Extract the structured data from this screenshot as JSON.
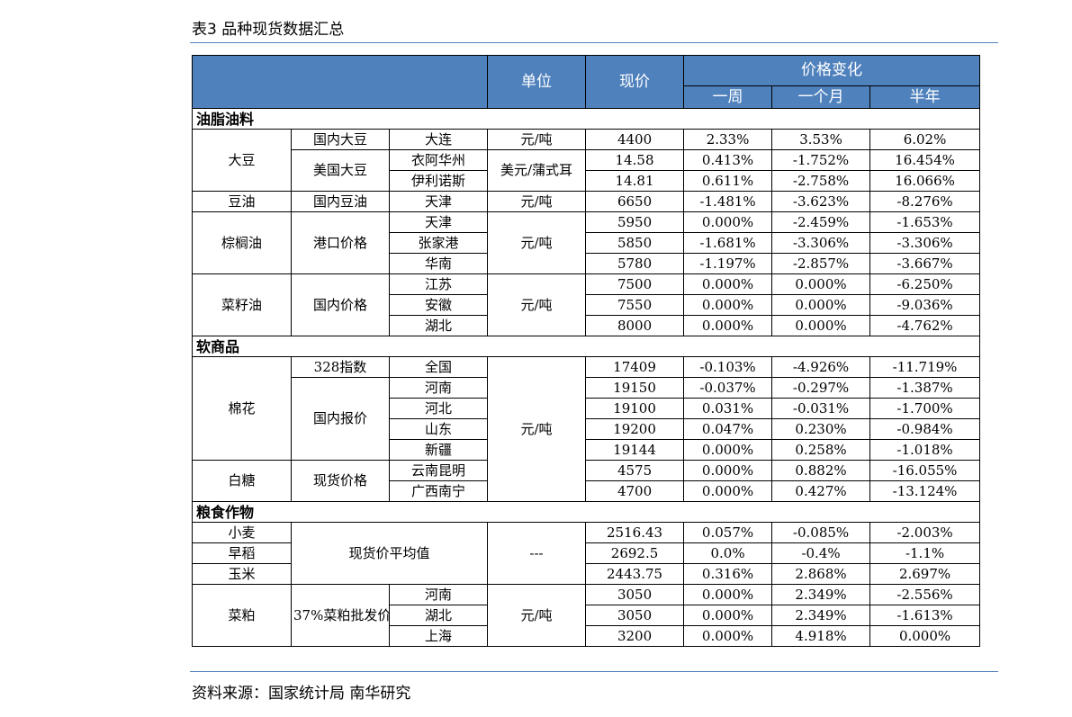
{
  "caption": "表3 品种现货数据汇总",
  "source": "资料来源：国家统计局 南华研究",
  "header": {
    "unit": "单位",
    "price": "现价",
    "change": "价格变化",
    "week": "一周",
    "month": "一个月",
    "half_year": "半年"
  },
  "sections": [
    {
      "title": "油脂油料",
      "groups": [
        {
          "product": "大豆",
          "subs": [
            {
              "name": "国内大豆",
              "unit": "元/吨",
              "rows": [
                {
                  "loc": "大连",
                  "price": "4400",
                  "week": "2.33%",
                  "month": "3.53%",
                  "half": "6.02%"
                }
              ]
            },
            {
              "name": "美国大豆",
              "unit": "美元/蒲式耳",
              "rows": [
                {
                  "loc": "衣阿华州",
                  "price": "14.58",
                  "week": "0.413%",
                  "month": "-1.752%",
                  "half": "16.454%"
                },
                {
                  "loc": "伊利诺斯",
                  "price": "14.81",
                  "week": "0.611%",
                  "month": "-2.758%",
                  "half": "16.066%"
                }
              ]
            }
          ]
        },
        {
          "product": "豆油",
          "subs": [
            {
              "name": "国内豆油",
              "unit": "元/吨",
              "rows": [
                {
                  "loc": "天津",
                  "price": "6650",
                  "week": "-1.481%",
                  "month": "-3.623%",
                  "half": "-8.276%"
                }
              ]
            }
          ]
        },
        {
          "product": "棕榈油",
          "subs": [
            {
              "name": "港口价格",
              "unit": "元/吨",
              "rows": [
                {
                  "loc": "天津",
                  "price": "5950",
                  "week": "0.000%",
                  "month": "-2.459%",
                  "half": "-1.653%"
                },
                {
                  "loc": "张家港",
                  "price": "5850",
                  "week": "-1.681%",
                  "month": "-3.306%",
                  "half": "-3.306%"
                },
                {
                  "loc": "华南",
                  "price": "5780",
                  "week": "-1.197%",
                  "month": "-2.857%",
                  "half": "-3.667%"
                }
              ]
            }
          ]
        },
        {
          "product": "菜籽油",
          "subs": [
            {
              "name": "国内价格",
              "unit": "元/吨",
              "rows": [
                {
                  "loc": "江苏",
                  "price": "7500",
                  "week": "0.000%",
                  "month": "0.000%",
                  "half": "-6.250%"
                },
                {
                  "loc": "安徽",
                  "price": "7550",
                  "week": "0.000%",
                  "month": "0.000%",
                  "half": "-9.036%"
                },
                {
                  "loc": "湖北",
                  "price": "8000",
                  "week": "0.000%",
                  "month": "0.000%",
                  "half": "-4.762%"
                }
              ]
            }
          ]
        }
      ]
    },
    {
      "title": "软商品",
      "unit_all": "元/吨",
      "groups": [
        {
          "product": "棉花",
          "subs": [
            {
              "name": "328指数",
              "rows": [
                {
                  "loc": "全国",
                  "price": "17409",
                  "week": "-0.103%",
                  "month": "-4.926%",
                  "half": "-11.719%"
                }
              ]
            },
            {
              "name": "国内报价",
              "rows": [
                {
                  "loc": "河南",
                  "price": "19150",
                  "week": "-0.037%",
                  "month": "-0.297%",
                  "half": "-1.387%"
                },
                {
                  "loc": "河北",
                  "price": "19100",
                  "week": "0.031%",
                  "month": "-0.031%",
                  "half": "-1.700%"
                },
                {
                  "loc": "山东",
                  "price": "19200",
                  "week": "0.047%",
                  "month": "0.230%",
                  "half": "-0.984%"
                },
                {
                  "loc": "新疆",
                  "price": "19144",
                  "week": "0.000%",
                  "month": "0.258%",
                  "half": "-1.018%"
                }
              ]
            }
          ]
        },
        {
          "product": "白糖",
          "subs": [
            {
              "name": "现货价格",
              "rows": [
                {
                  "loc": "云南昆明",
                  "price": "4575",
                  "week": "0.000%",
                  "month": "0.882%",
                  "half": "-16.055%"
                },
                {
                  "loc": "广西南宁",
                  "price": "4700",
                  "week": "0.000%",
                  "month": "0.427%",
                  "half": "-13.124%"
                }
              ]
            }
          ]
        }
      ]
    },
    {
      "title": "粮食作物",
      "grain": {
        "label": "现货价平均值",
        "unit": "---",
        "rows": [
          {
            "product": "小麦",
            "price": "2516.43",
            "week": "0.057%",
            "month": "-0.085%",
            "half": "-2.003%"
          },
          {
            "product": "早稻",
            "price": "2692.5",
            "week": "0.0%",
            "month": "-0.4%",
            "half": "-1.1%"
          },
          {
            "product": "玉米",
            "price": "2443.75",
            "week": "0.316%",
            "month": "2.868%",
            "half": "2.697%"
          }
        ]
      },
      "meal": {
        "product": "菜粕",
        "name": "37%菜粕批发价",
        "unit": "元/吨",
        "rows": [
          {
            "loc": "河南",
            "price": "3050",
            "week": "0.000%",
            "month": "2.349%",
            "half": "-2.556%"
          },
          {
            "loc": "湖北",
            "price": "3050",
            "week": "0.000%",
            "month": "2.349%",
            "half": "-1.613%"
          },
          {
            "loc": "上海",
            "price": "3200",
            "week": "0.000%",
            "month": "4.918%",
            "half": "0.000%"
          }
        ]
      }
    }
  ]
}
